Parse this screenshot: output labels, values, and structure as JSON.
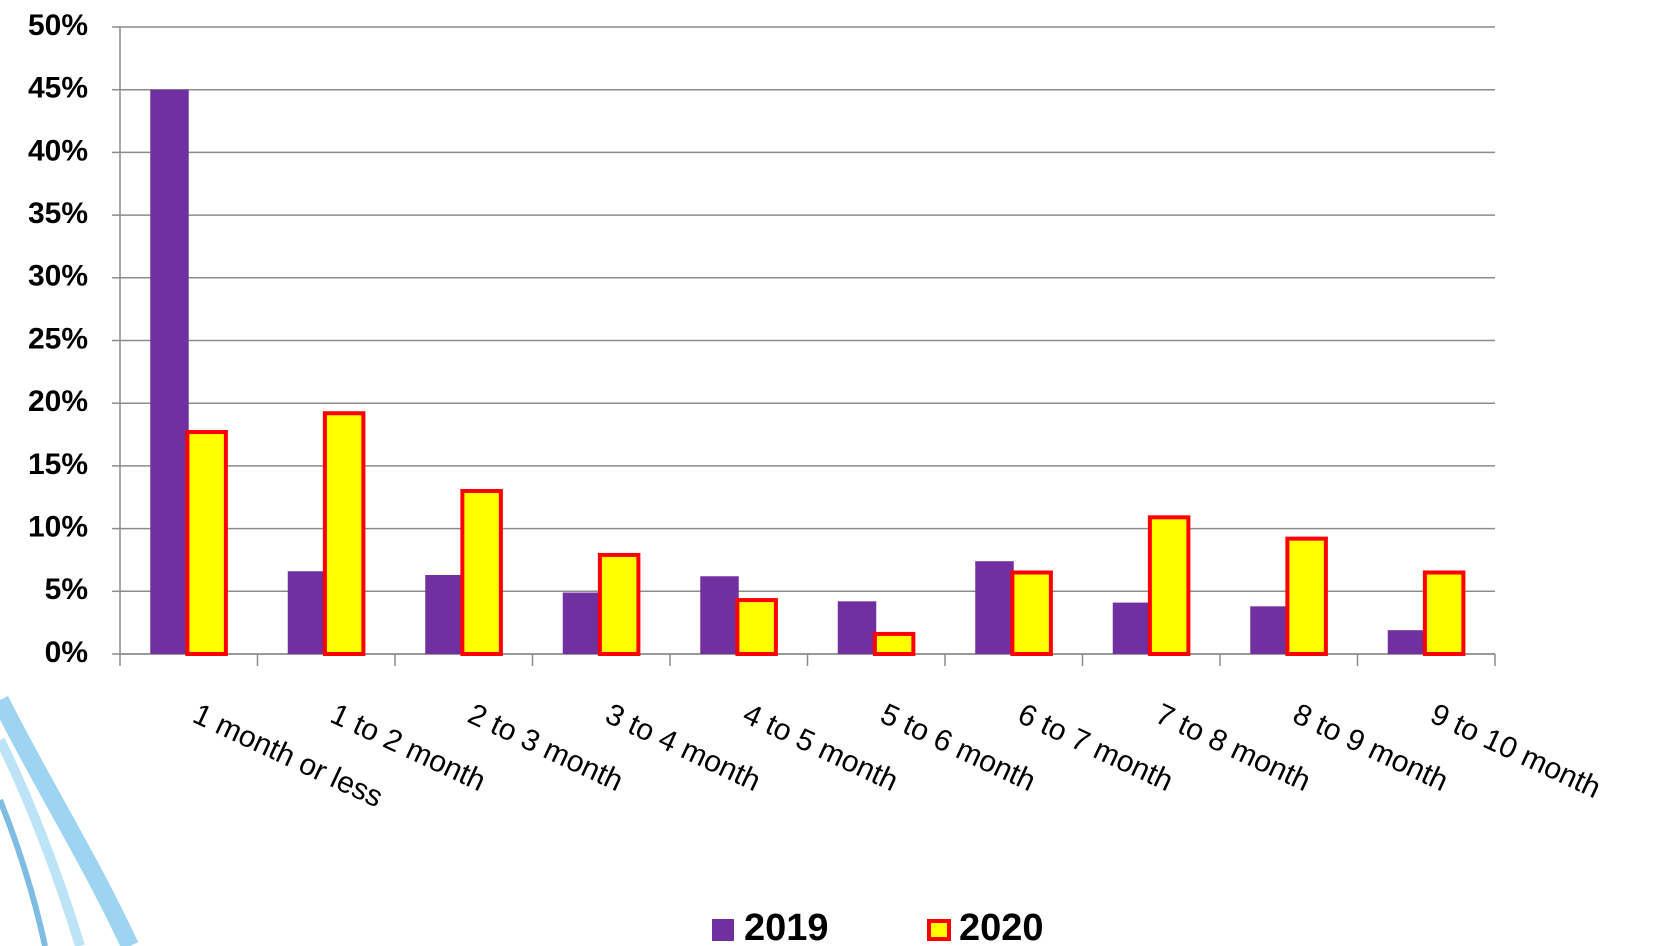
{
  "chart_data": {
    "type": "bar",
    "categories": [
      "1 month or less",
      "1 to 2 month",
      "2 to 3 month",
      "3 to 4 month",
      "4 to 5 month",
      "5 to 6 month",
      "6 to 7 month",
      "7 to 8 month",
      "8 to 9 month",
      "9 to 10 month"
    ],
    "series": [
      {
        "name": "2019",
        "color": "#7030a0",
        "values": [
          45,
          6.6,
          6.3,
          4.9,
          6.2,
          4.2,
          7.4,
          4.1,
          3.8,
          1.9
        ]
      },
      {
        "name": "2020",
        "color": "#ffff00",
        "edgecolor": "#ff0000",
        "values": [
          17.7,
          19.2,
          13.0,
          7.9,
          4.3,
          1.6,
          6.5,
          10.9,
          9.2,
          6.5
        ]
      }
    ],
    "ylim": [
      0,
      50
    ],
    "yticks": [
      {
        "value": 0,
        "label": "0%"
      },
      {
        "value": 5,
        "label": "5%"
      },
      {
        "value": 10,
        "label": "10%"
      },
      {
        "value": 15,
        "label": "15%"
      },
      {
        "value": 20,
        "label": "20%"
      },
      {
        "value": 25,
        "label": "25%"
      },
      {
        "value": 30,
        "label": "30%"
      },
      {
        "value": 35,
        "label": "35%"
      },
      {
        "value": 40,
        "label": "40%"
      },
      {
        "value": 45,
        "label": "45%"
      },
      {
        "value": 50,
        "label": "50%"
      }
    ],
    "grid": true,
    "legend": "bottom"
  }
}
